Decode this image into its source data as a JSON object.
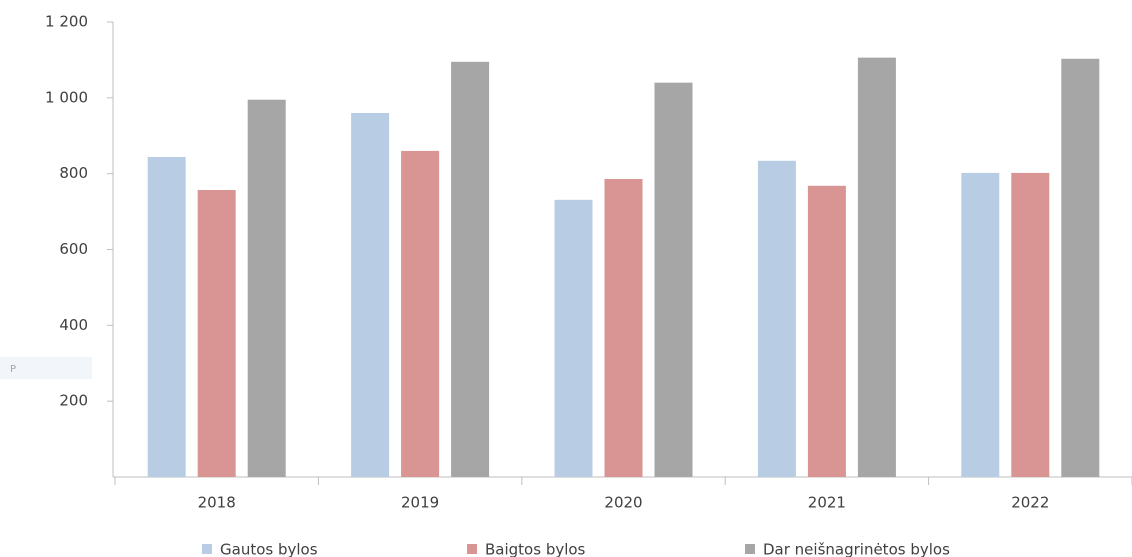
{
  "chart_data": {
    "type": "bar",
    "categories": [
      "2018",
      "2019",
      "2020",
      "2021",
      "2022"
    ],
    "series": [
      {
        "name": "Gautos bylos",
        "color": "#b8cce4",
        "values": [
          844,
          960,
          731,
          834,
          802
        ]
      },
      {
        "name": "Baigtos bylos",
        "color": "#d99594",
        "values": [
          757,
          860,
          786,
          768,
          802
        ]
      },
      {
        "name": "Dar neišnagrinėtos bylos",
        "color": "#a6a6a6",
        "values": [
          995,
          1095,
          1040,
          1106,
          1103
        ]
      }
    ],
    "ylim": [
      0,
      1200
    ],
    "yticks": [
      {
        "value": 200,
        "label": "200"
      },
      {
        "value": 400,
        "label": "400"
      },
      {
        "value": 600,
        "label": "600"
      },
      {
        "value": 800,
        "label": "800"
      },
      {
        "value": 1000,
        "label": "1 000"
      },
      {
        "value": 1200,
        "label": "1 200"
      }
    ],
    "annotation": "P",
    "grid": false,
    "legend": "bottom"
  }
}
